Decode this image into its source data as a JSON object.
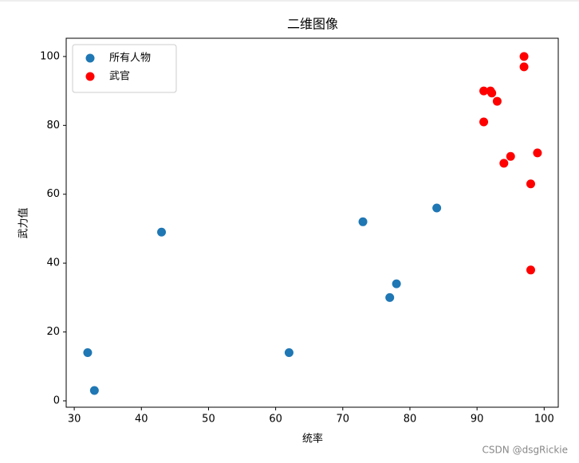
{
  "chart_data": {
    "type": "scatter",
    "title": "二维图像",
    "x_label": "统率",
    "y_label": "武力值",
    "series": [
      {
        "name": "所有人物",
        "color": "#1f77b4",
        "x": [
          32,
          33,
          43,
          62,
          73,
          77,
          78,
          84
        ],
        "values": [
          14,
          3,
          49,
          14,
          52,
          30,
          34,
          56
        ]
      },
      {
        "name": "武官",
        "color": "#ff0000",
        "x": [
          91,
          92,
          92.2,
          93,
          91,
          97,
          97,
          95,
          94,
          99,
          98,
          98
        ],
        "values": [
          90,
          90,
          89.4,
          87,
          81,
          100,
          97,
          71,
          69,
          72,
          63,
          38
        ]
      }
    ],
    "xlim": [
      28.8,
      102.1
    ],
    "xticks": [
      30,
      40,
      50,
      60,
      70,
      80,
      90,
      100
    ],
    "ylim": [
      -1.85,
      105.3
    ],
    "yticks": [
      0,
      20,
      40,
      60,
      80,
      100
    ],
    "legend": "upper left",
    "watermark": "CSDN @dsgRickie"
  }
}
